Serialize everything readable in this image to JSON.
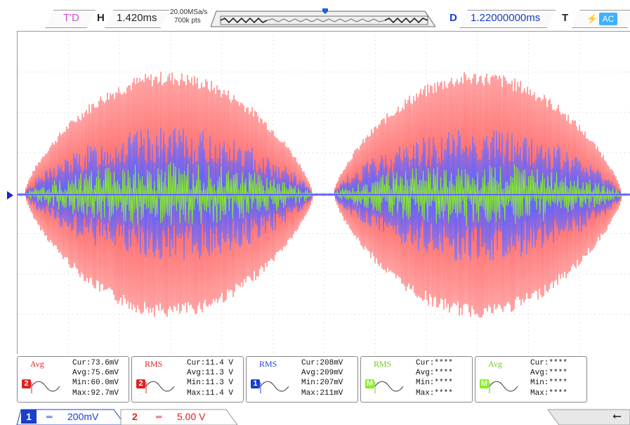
{
  "header": {
    "trigger_status": "T'D",
    "h_label": "H",
    "timebase": "1.420ms",
    "sample_rate": "20.00MSa/s",
    "points": "700k pts",
    "d_label": "D",
    "delay": "1.22000000ms",
    "t_label": "T",
    "trigger_coupling": "AC"
  },
  "colors": {
    "ch1": "#6666ff",
    "ch2": "#ff6666",
    "math": "#88ee22",
    "accent": "#1a3fc8"
  },
  "measurements": [
    {
      "type": "Avg",
      "channel": "2",
      "cur": "Cur:73.6mV",
      "avg": "Avg:75.6mV",
      "min": "Min:60.0mV",
      "max": "Max:92.7mV"
    },
    {
      "type": "RMS",
      "channel": "2",
      "cur": "Cur:11.4 V",
      "avg": "Avg:11.3 V",
      "min": "Min:11.3 V",
      "max": "Max:11.4 V"
    },
    {
      "type": "RMS",
      "channel": "1",
      "cur": "Cur:208mV",
      "avg": "Avg:209mV",
      "min": "Min:207mV",
      "max": "Max:211mV"
    },
    {
      "type": "RMS",
      "channel": "M",
      "cur": "Cur:****",
      "avg": "Avg:****",
      "min": "Min:****",
      "max": "Max:****"
    },
    {
      "type": "Avg",
      "channel": "M",
      "cur": "Cur:****",
      "avg": "Avg:****",
      "min": "Min:****",
      "max": "Max:****"
    }
  ],
  "channels": {
    "ch1": {
      "number": "1",
      "scale": "200mV"
    },
    "ch2": {
      "number": "2",
      "scale": "5.00 V"
    }
  },
  "icons": {
    "usb": "usb-icon",
    "trigger_pos": "trigger-position-icon",
    "ground": "ground-marker-icon"
  }
}
